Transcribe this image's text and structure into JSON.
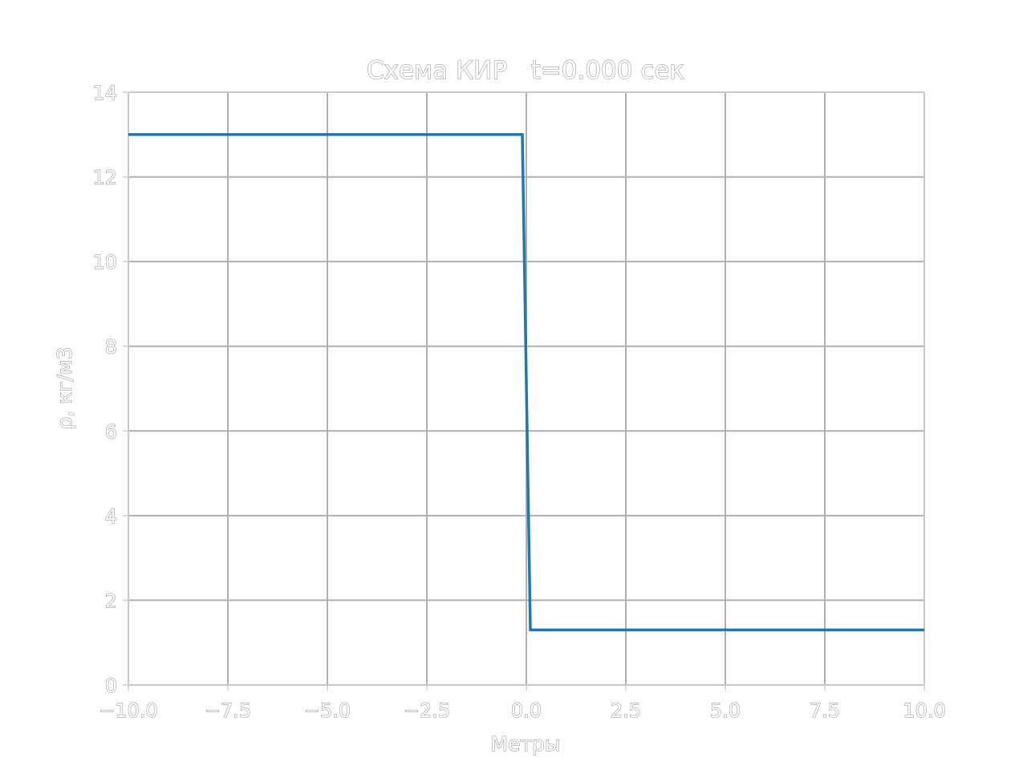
{
  "chart_data": {
    "type": "line",
    "title": "Схема КИР   t=0.000 сек",
    "xlabel": "Метры",
    "ylabel": "ρ, кг/м3",
    "xlim": [
      -10,
      10
    ],
    "ylim": [
      0,
      14
    ],
    "x_ticks": [
      -10,
      -7.5,
      -5,
      -2.5,
      0,
      2.5,
      5,
      7.5,
      10
    ],
    "x_tick_labels": [
      "−10.0",
      "−7.5",
      "−5.0",
      "−2.5",
      "0.0",
      "2.5",
      "5.0",
      "7.5",
      "10.0"
    ],
    "y_ticks": [
      0,
      2,
      4,
      6,
      8,
      10,
      12,
      14
    ],
    "y_tick_labels": [
      "0",
      "2",
      "4",
      "6",
      "8",
      "10",
      "12",
      "14"
    ],
    "grid": true,
    "series": [
      {
        "color": "#1f77b4",
        "x": [
          -10,
          -0.1,
          0.1,
          10
        ],
        "y": [
          13,
          13,
          1.3,
          1.3
        ]
      }
    ]
  }
}
